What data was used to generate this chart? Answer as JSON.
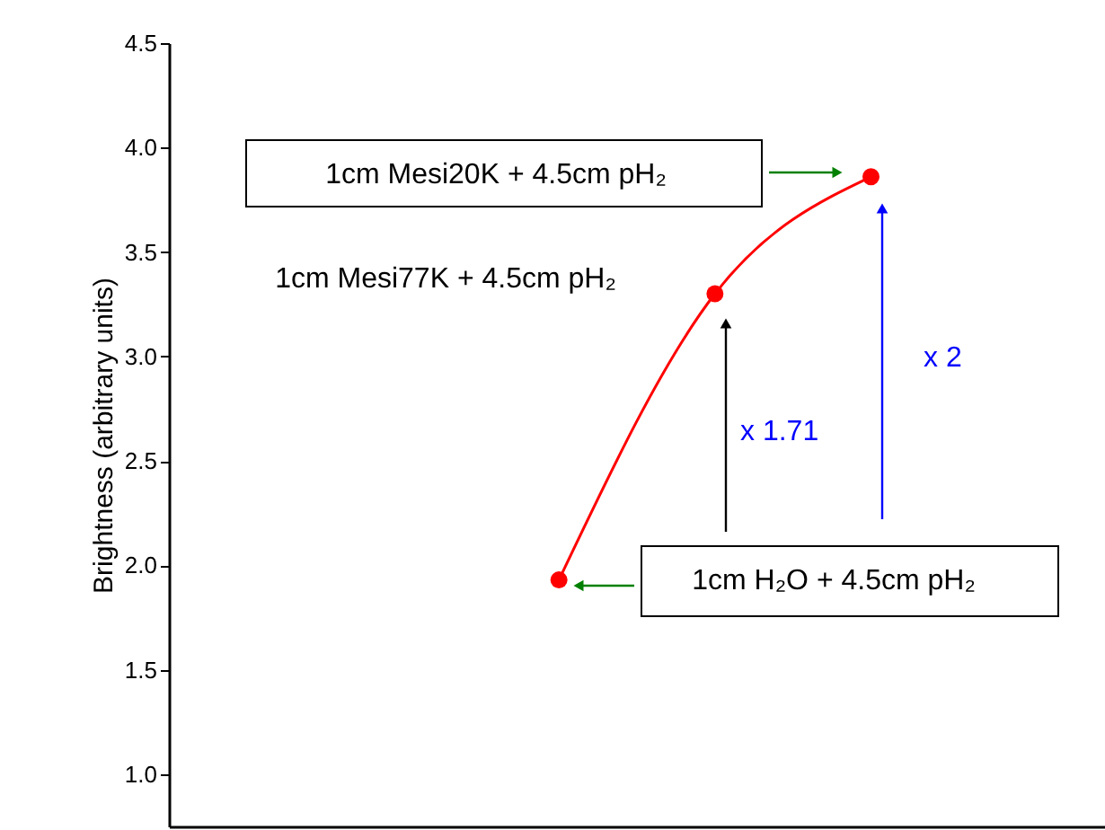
{
  "chart_data": {
    "type": "line",
    "ylabel": "Brightness (arbitrary units)",
    "categories": [
      null,
      null,
      null,
      null,
      null,
      null
    ],
    "series": [
      {
        "color": "#ff0000",
        "values": [
          null,
          null,
          1.93,
          3.3,
          3.86,
          null
        ]
      }
    ],
    "ylim": [
      0.75,
      4.5
    ],
    "yticks": [
      {
        "value": 1,
        "label": "1.0"
      },
      1.5,
      {
        "value": 2,
        "label": "2.0"
      },
      2.5,
      {
        "value": 3,
        "label": "3.0"
      },
      3.5,
      {
        "value": 4,
        "label": "4.0"
      },
      4.5
    ],
    "grid": false,
    "legend": false,
    "marker": "circle",
    "line_style": "solid",
    "tick_labels": "y",
    "annotations": [
      "1cm Mesi20K + 4.5cm pH₂",
      "1cm Mesi77K + 4.5cm pH₂",
      "1cm H₂O + 4.5cm pH₂",
      "x 1.71",
      "x 2"
    ]
  }
}
